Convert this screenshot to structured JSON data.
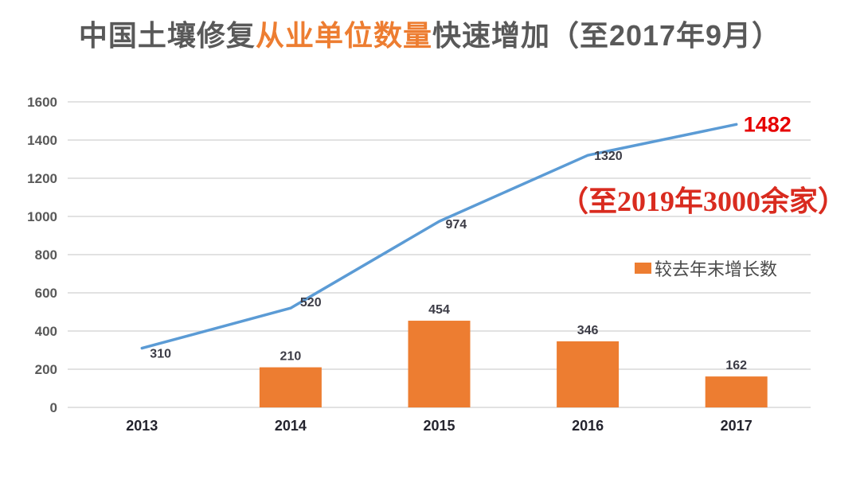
{
  "title": {
    "pre": "中国土壤修复",
    "highlight": "从业单位数量",
    "post": "快速增加（至2017年9月）"
  },
  "annotation": {
    "text": "（至2019年3000余家）"
  },
  "legend": {
    "label": "较去年末增长数"
  },
  "colors": {
    "bar_orange": "#ed7d31",
    "line_blue": "#5b9bd5",
    "grid_gray": "#d9d9d9",
    "title_gray": "#595959",
    "highlight_orange": "#ed7d31",
    "data_label_dark": "#3c3c46",
    "axis_label_gray": "#595959",
    "red_final_label": "#e60000",
    "red_annotation": "#d92b1f"
  },
  "chart_data": {
    "type": "combo",
    "title": "中国土壤修复从业单位数量快速增加（至2017年9月）",
    "categories": [
      "2013",
      "2014",
      "2015",
      "2016",
      "2017"
    ],
    "series": [
      {
        "name": "从业单位数量",
        "type": "line",
        "values": [
          310,
          520,
          974,
          1320,
          1482
        ],
        "color": "#5b9bd5"
      },
      {
        "name": "较去年末增长数",
        "type": "bar",
        "values": [
          null,
          210,
          454,
          346,
          162
        ],
        "color": "#ed7d31"
      }
    ],
    "xlabel": "",
    "ylabel": "",
    "ylim": [
      0,
      1600
    ],
    "y_tick_step": 200,
    "y_ticks": [
      0,
      200,
      400,
      600,
      800,
      1000,
      1200,
      1400,
      1600
    ],
    "grid": true,
    "legend_position": "middle-right",
    "final_point_annotation": "1482",
    "side_annotation": "（至2019年3000余家）"
  }
}
